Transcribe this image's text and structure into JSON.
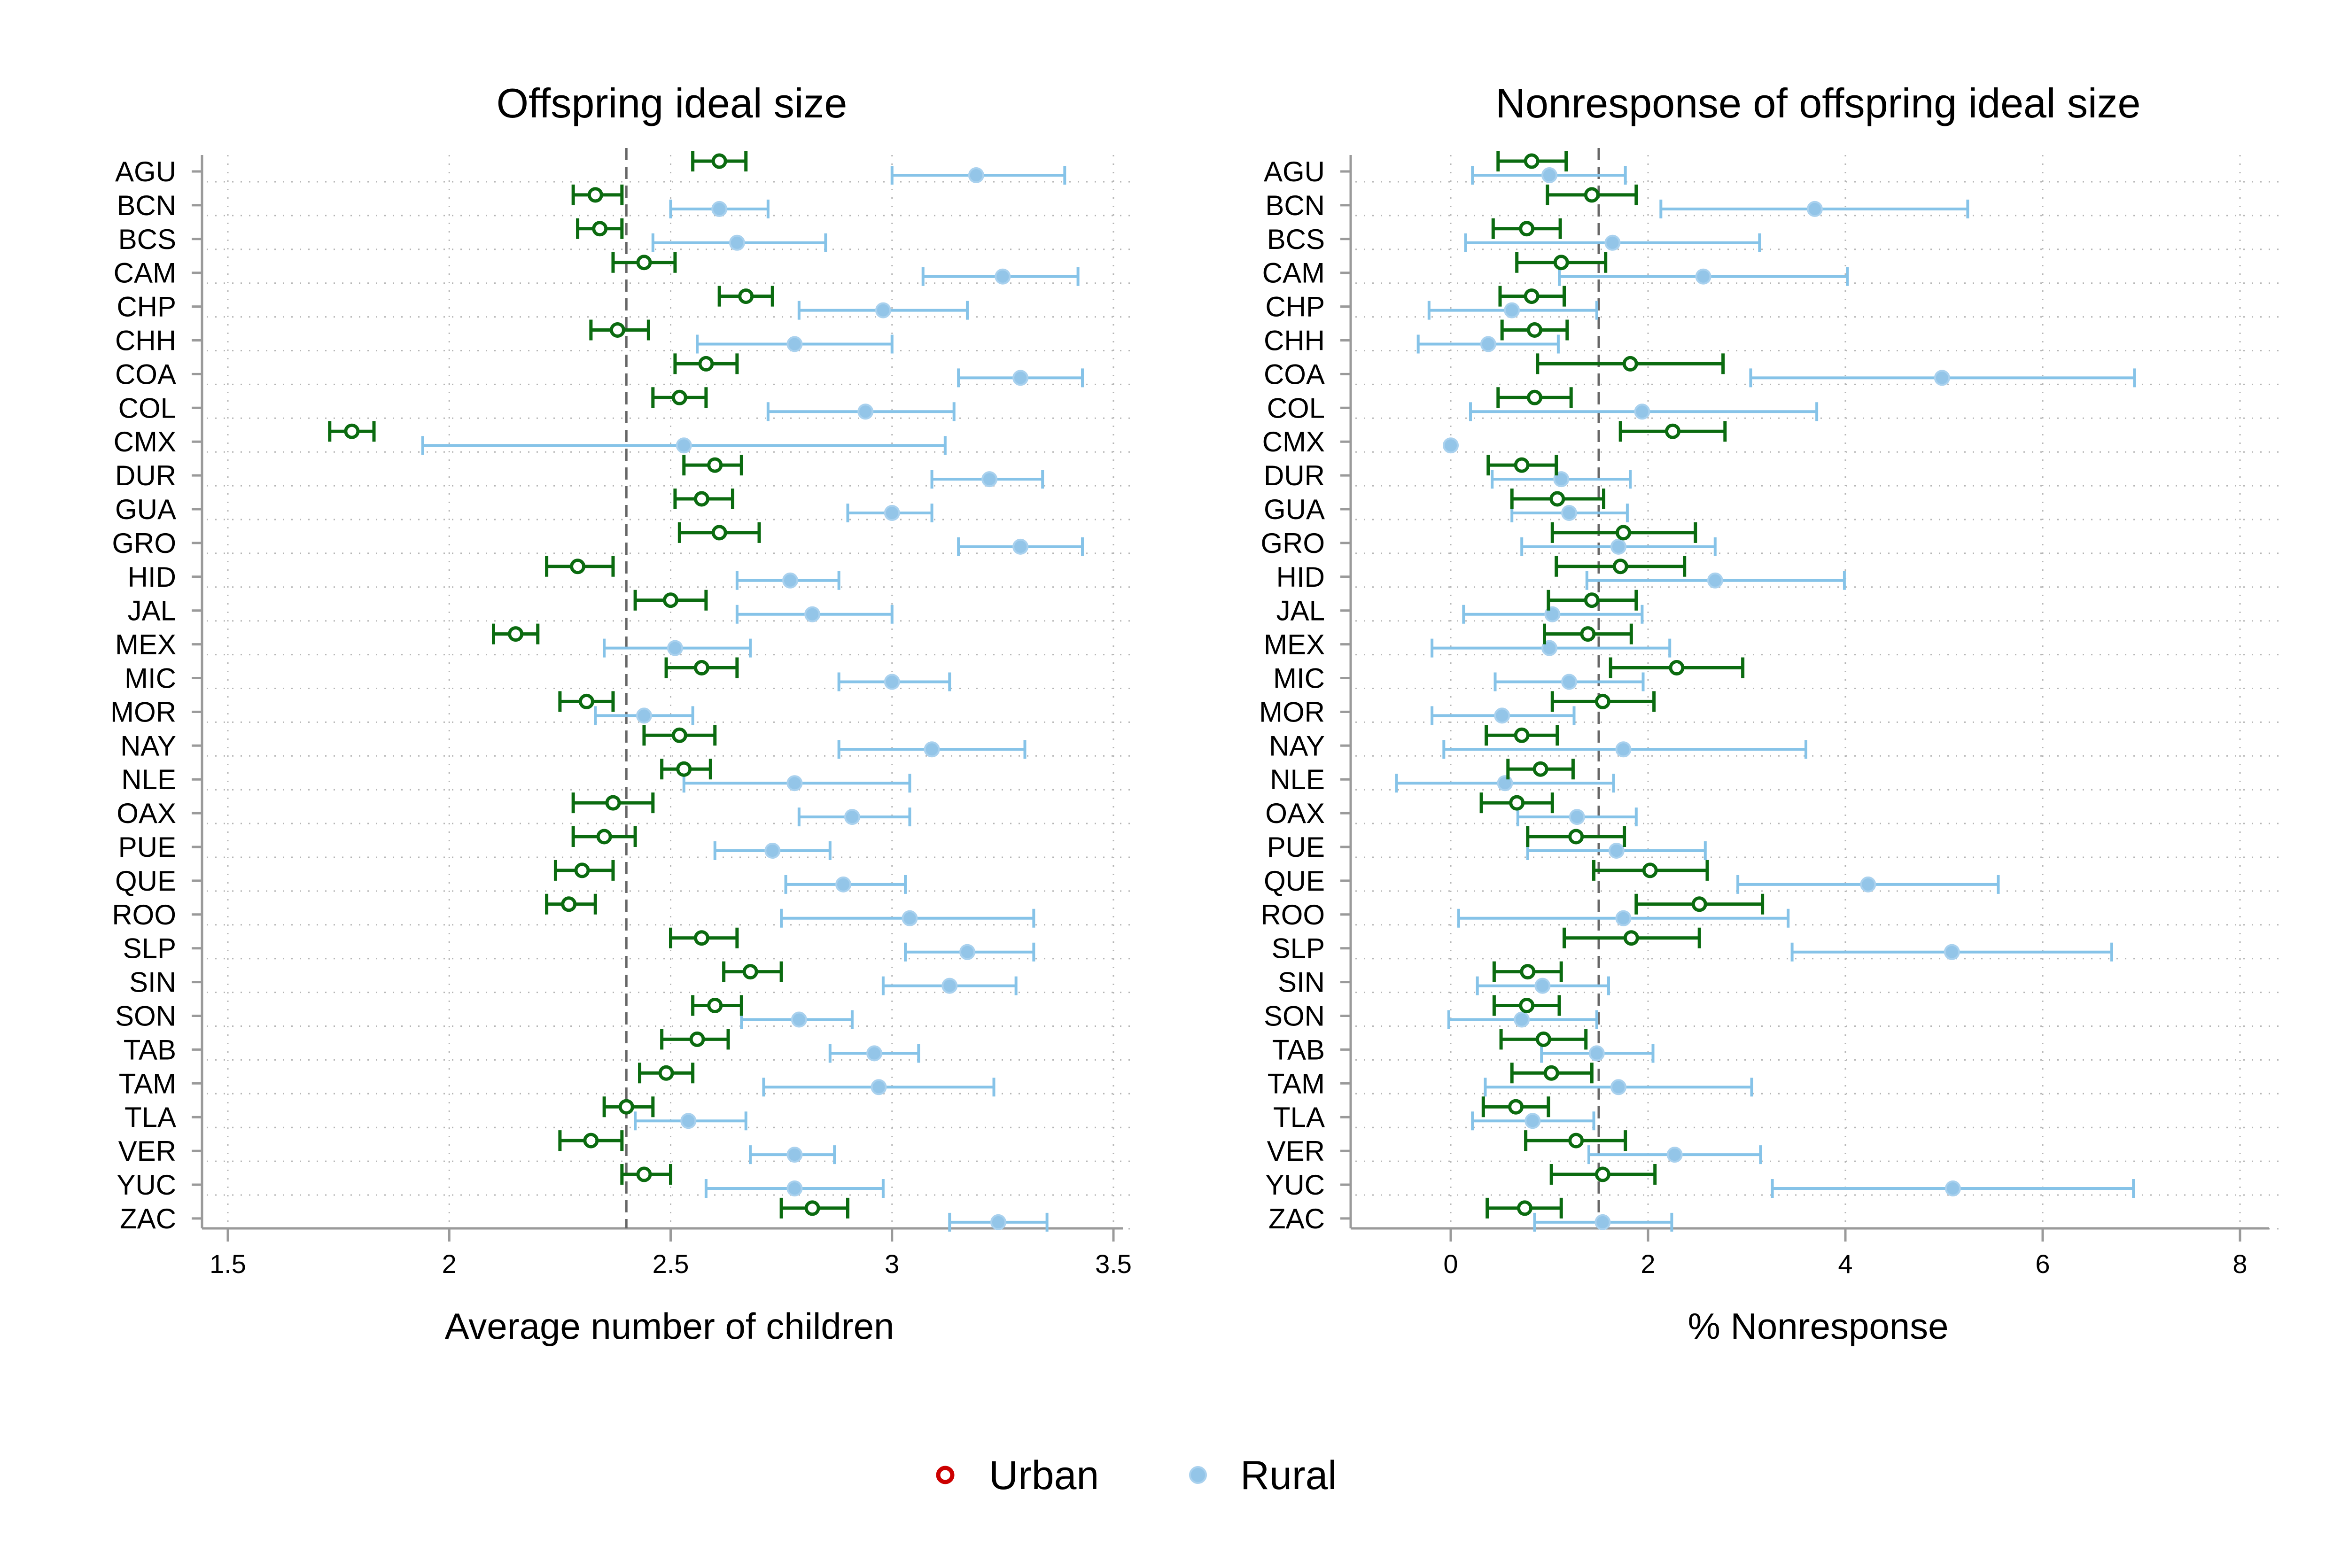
{
  "colors": {
    "urban_ci": "#0b6b10",
    "rural_ci": "#86c3e8",
    "urban_marker_stroke": "#0b6b10",
    "rural_marker": "#93c5e8",
    "legend_urban_marker": "#cc0000",
    "legend_rural_marker": "#93c5e8",
    "reference_line": "#666666",
    "grid": "#b5b5b5",
    "axis": "#9a9a9a"
  },
  "legend": {
    "position": "bottom-center",
    "urban_label": "Urban",
    "rural_label": "Rural"
  },
  "chart_data": [
    {
      "type": "scatter",
      "subtype": "dot-and-whisker",
      "title": "Offspring ideal size",
      "xlabel": "Average number of children",
      "ylabel": "",
      "xlim": [
        1.5,
        3.5
      ],
      "xticks": [
        1.5,
        2,
        2.5,
        3,
        3.5
      ],
      "xtick_labels": [
        "1.5",
        "2",
        "2.5",
        "3",
        "3.5"
      ],
      "reference_line_x": 2.4,
      "grid": true,
      "categories": [
        "AGU",
        "BCN",
        "BCS",
        "CAM",
        "CHP",
        "CHH",
        "COA",
        "COL",
        "CMX",
        "DUR",
        "GUA",
        "GRO",
        "HID",
        "JAL",
        "MEX",
        "MIC",
        "MOR",
        "NAY",
        "NLE",
        "OAX",
        "PUE",
        "QUE",
        "ROO",
        "SLP",
        "SIN",
        "SON",
        "TAB",
        "TAM",
        "TLA",
        "VER",
        "YUC",
        "ZAC"
      ],
      "series": [
        {
          "name": "Urban",
          "values": [
            2.61,
            2.33,
            2.34,
            2.44,
            2.67,
            2.38,
            2.58,
            2.52,
            1.78,
            2.6,
            2.57,
            2.61,
            2.29,
            2.5,
            2.15,
            2.57,
            2.31,
            2.52,
            2.53,
            2.37,
            2.35,
            2.3,
            2.27,
            2.57,
            2.68,
            2.6,
            2.56,
            2.49,
            2.4,
            2.32,
            2.44,
            2.82
          ],
          "lower": [
            2.55,
            2.28,
            2.29,
            2.37,
            2.61,
            2.32,
            2.51,
            2.46,
            1.73,
            2.53,
            2.51,
            2.52,
            2.22,
            2.42,
            2.1,
            2.49,
            2.25,
            2.44,
            2.48,
            2.28,
            2.28,
            2.24,
            2.22,
            2.5,
            2.62,
            2.55,
            2.48,
            2.43,
            2.35,
            2.25,
            2.39,
            2.75
          ],
          "upper": [
            2.67,
            2.39,
            2.39,
            2.51,
            2.73,
            2.45,
            2.65,
            2.58,
            1.83,
            2.66,
            2.64,
            2.7,
            2.37,
            2.58,
            2.2,
            2.65,
            2.37,
            2.6,
            2.59,
            2.46,
            2.42,
            2.37,
            2.33,
            2.65,
            2.75,
            2.66,
            2.63,
            2.55,
            2.46,
            2.39,
            2.5,
            2.9
          ]
        },
        {
          "name": "Rural",
          "values": [
            3.19,
            2.61,
            2.65,
            3.25,
            2.98,
            2.78,
            3.29,
            2.94,
            2.53,
            3.22,
            3.0,
            3.29,
            2.77,
            2.82,
            2.51,
            3.0,
            2.44,
            3.09,
            2.78,
            2.91,
            2.73,
            2.89,
            3.04,
            3.17,
            3.13,
            2.79,
            2.96,
            2.97,
            2.54,
            2.78,
            2.78,
            3.24
          ],
          "lower": [
            3.0,
            2.5,
            2.46,
            3.07,
            2.79,
            2.56,
            3.15,
            2.72,
            1.94,
            3.09,
            2.9,
            3.15,
            2.65,
            2.65,
            2.35,
            2.88,
            2.33,
            2.88,
            2.53,
            2.79,
            2.6,
            2.76,
            2.75,
            3.03,
            2.98,
            2.66,
            2.86,
            2.71,
            2.42,
            2.68,
            2.58,
            3.13
          ],
          "upper": [
            3.39,
            2.72,
            2.85,
            3.42,
            3.17,
            3.0,
            3.43,
            3.14,
            3.12,
            3.34,
            3.09,
            3.43,
            2.88,
            3.0,
            2.68,
            3.13,
            2.55,
            3.3,
            3.04,
            3.04,
            2.86,
            3.03,
            3.32,
            3.32,
            3.28,
            2.91,
            3.06,
            3.23,
            2.67,
            2.87,
            2.98,
            3.35
          ]
        }
      ]
    },
    {
      "type": "scatter",
      "subtype": "dot-and-whisker",
      "title": "Nonresponse of offspring ideal size",
      "xlabel": "% Nonresponse",
      "ylabel": "",
      "xlim": [
        -0.8,
        8.2
      ],
      "xticks": [
        0,
        2,
        4,
        6,
        8
      ],
      "xtick_labels": [
        "0",
        "2",
        "4",
        "6",
        "8"
      ],
      "reference_line_x": 1.5,
      "grid": true,
      "categories": [
        "AGU",
        "BCN",
        "BCS",
        "CAM",
        "CHP",
        "CHH",
        "COA",
        "COL",
        "CMX",
        "DUR",
        "GUA",
        "GRO",
        "HID",
        "JAL",
        "MEX",
        "MIC",
        "MOR",
        "NAY",
        "NLE",
        "OAX",
        "PUE",
        "QUE",
        "ROO",
        "SLP",
        "SIN",
        "SON",
        "TAB",
        "TAM",
        "TLA",
        "VER",
        "YUC",
        "ZAC"
      ],
      "series": [
        {
          "name": "Urban",
          "values": [
            0.82,
            1.43,
            0.77,
            1.12,
            0.82,
            0.85,
            1.82,
            0.85,
            2.25,
            0.72,
            1.08,
            1.75,
            1.72,
            1.43,
            1.39,
            2.29,
            1.54,
            0.72,
            0.91,
            0.67,
            1.27,
            2.02,
            2.52,
            1.83,
            0.78,
            0.77,
            0.94,
            1.02,
            0.66,
            1.27,
            1.54,
            0.75
          ],
          "lower": [
            0.48,
            0.98,
            0.43,
            0.67,
            0.5,
            0.52,
            0.88,
            0.48,
            1.72,
            0.38,
            0.62,
            1.03,
            1.07,
            0.99,
            0.95,
            1.62,
            1.03,
            0.36,
            0.58,
            0.31,
            0.78,
            1.45,
            1.88,
            1.15,
            0.44,
            0.44,
            0.51,
            0.62,
            0.33,
            0.76,
            1.02,
            0.37
          ],
          "upper": [
            1.17,
            1.88,
            1.11,
            1.57,
            1.15,
            1.18,
            2.76,
            1.22,
            2.78,
            1.07,
            1.55,
            2.48,
            2.37,
            1.88,
            1.83,
            2.96,
            2.06,
            1.08,
            1.24,
            1.03,
            1.76,
            2.6,
            3.16,
            2.52,
            1.12,
            1.1,
            1.37,
            1.43,
            0.99,
            1.77,
            2.07,
            1.12
          ]
        },
        {
          "name": "Rural",
          "values": [
            1.0,
            3.69,
            1.64,
            2.56,
            0.62,
            0.38,
            4.98,
            1.94,
            0.0,
            1.12,
            1.2,
            1.7,
            2.68,
            1.03,
            1.0,
            1.2,
            0.52,
            1.75,
            0.55,
            1.28,
            1.68,
            4.23,
            1.75,
            5.08,
            0.93,
            0.72,
            1.48,
            1.7,
            0.83,
            2.27,
            5.09,
            1.54
          ],
          "lower": [
            0.22,
            2.13,
            0.15,
            1.1,
            -0.22,
            -0.33,
            3.04,
            0.2,
            0.0,
            0.42,
            0.62,
            0.72,
            1.38,
            0.13,
            -0.19,
            0.45,
            -0.19,
            -0.07,
            -0.55,
            0.68,
            0.78,
            2.91,
            0.08,
            3.46,
            0.27,
            -0.02,
            0.92,
            0.35,
            0.22,
            1.4,
            3.26,
            0.85
          ],
          "upper": [
            1.77,
            5.24,
            3.13,
            4.02,
            1.48,
            1.09,
            6.93,
            3.71,
            0.0,
            1.82,
            1.79,
            2.68,
            3.99,
            1.94,
            2.22,
            1.95,
            1.25,
            3.6,
            1.65,
            1.88,
            2.58,
            5.55,
            3.42,
            6.7,
            1.6,
            1.48,
            2.05,
            3.05,
            1.45,
            3.14,
            6.92,
            2.24
          ]
        }
      ]
    }
  ]
}
